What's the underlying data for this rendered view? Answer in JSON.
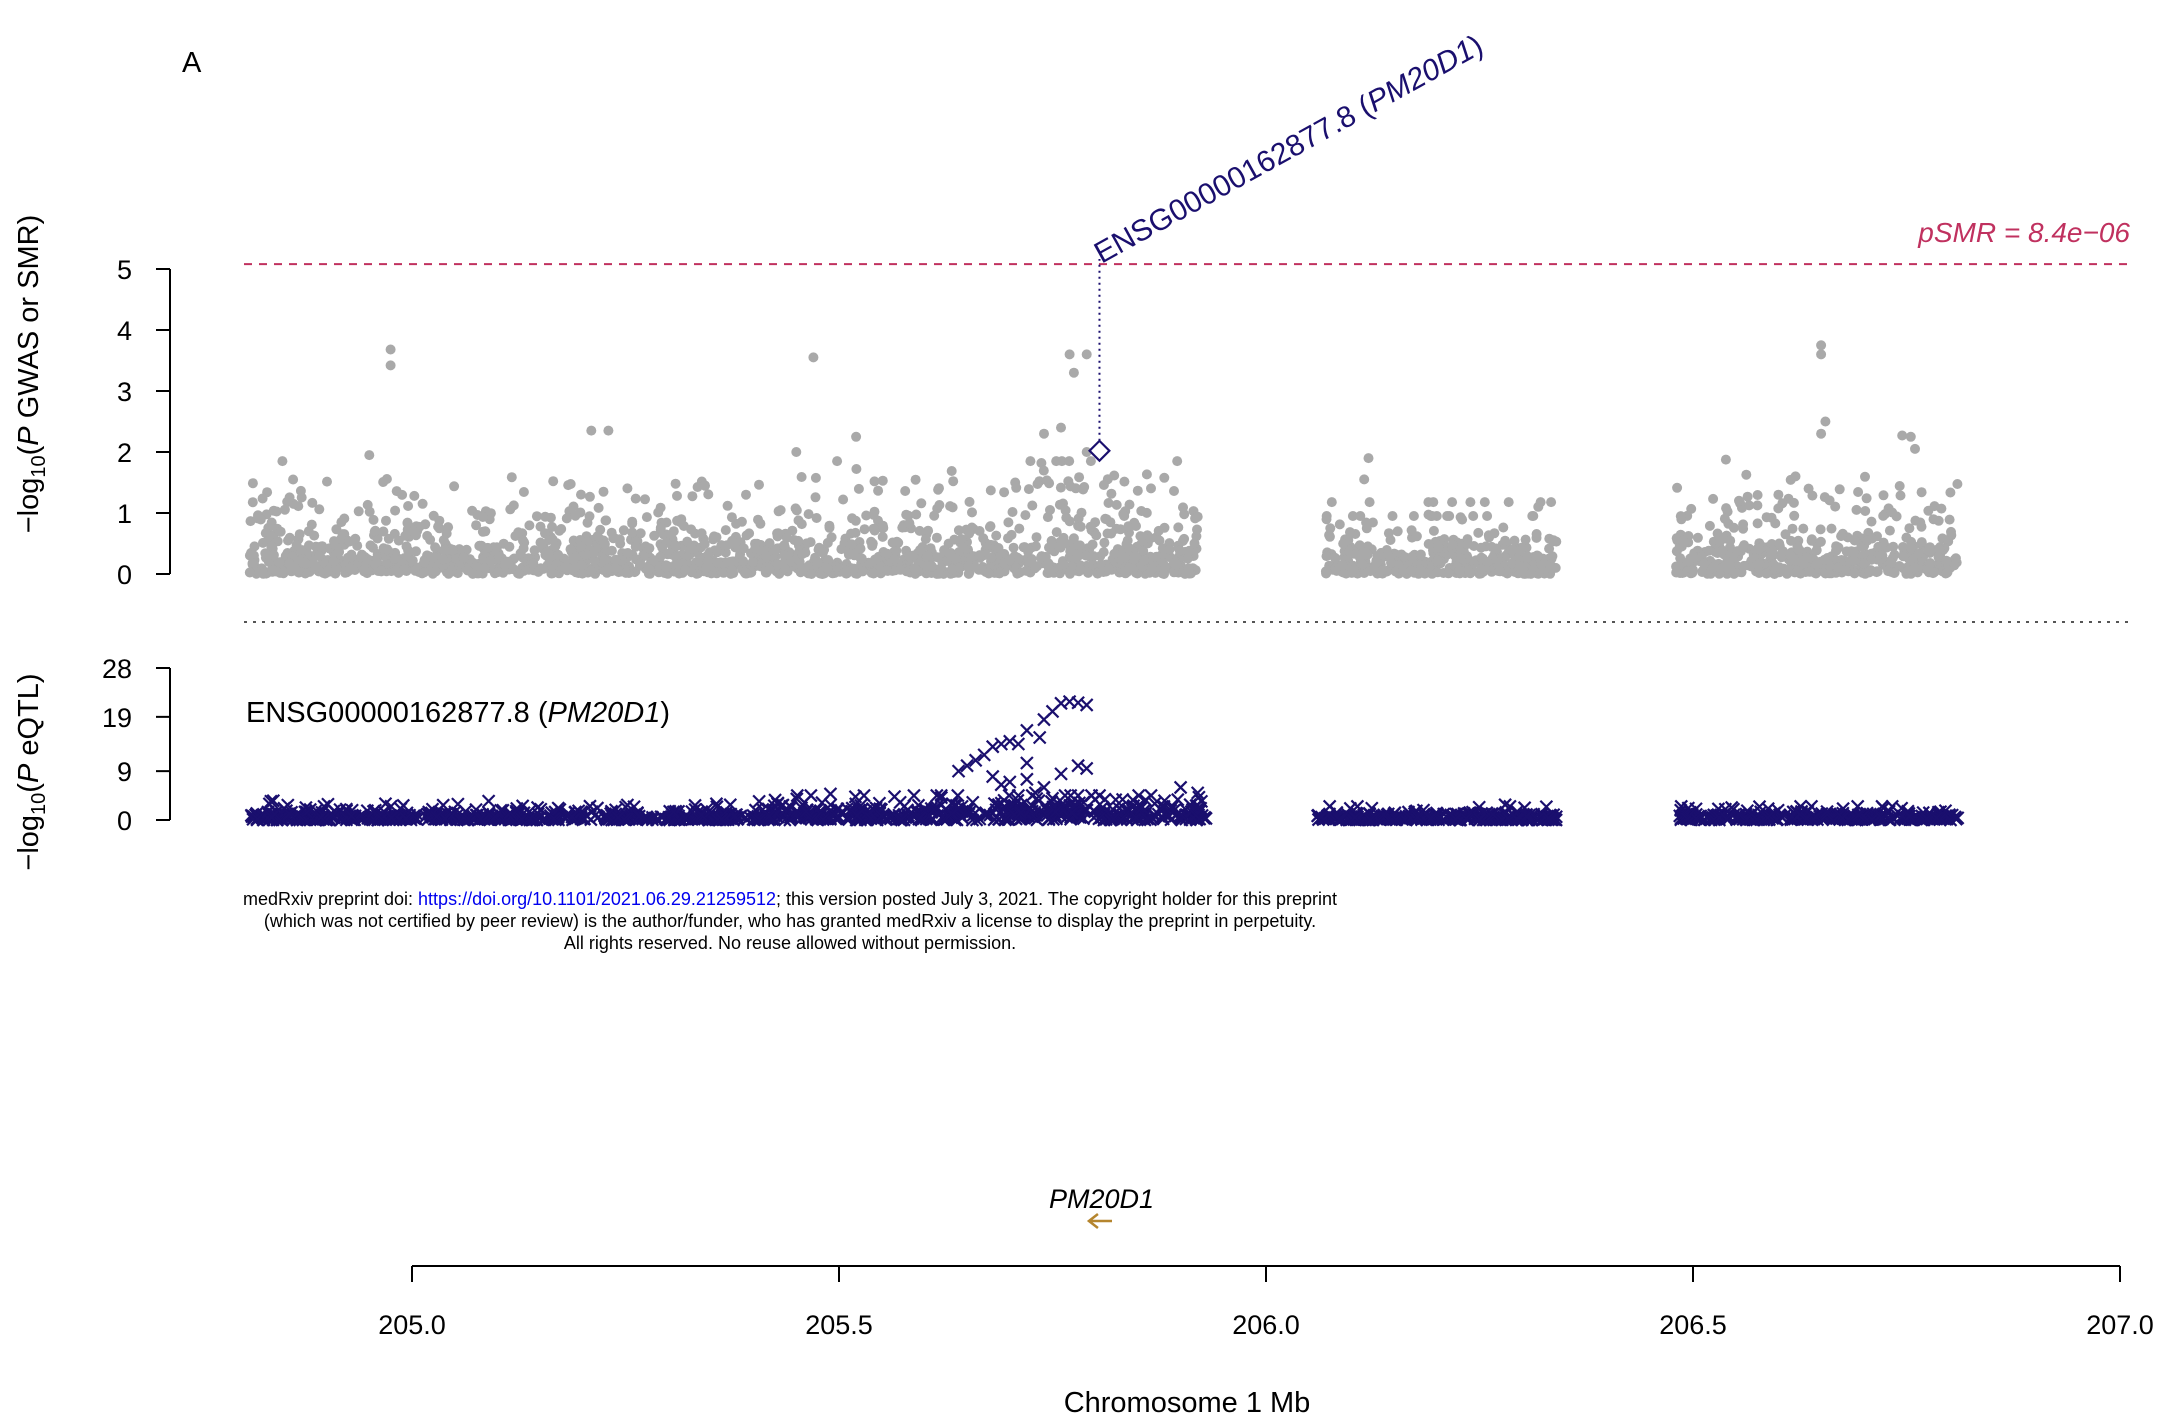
{
  "panel_label": "A",
  "notice": {
    "line1_pre": "medRxiv preprint doi: ",
    "doi_link": "https://doi.org/10.1101/2021.06.29.21259512",
    "line1_post": "; this version posted July 3, 2021. The copyright holder for this preprint",
    "line2": "(which was not certified by peer review) is the author/funder, who has granted medRxiv a license to display the preprint in perpetuity.",
    "line3": "All rights reserved. No reuse allowed without permission."
  },
  "colors": {
    "gwas_points": "#a9a9a9",
    "eqtl_points": "#1a0f6e",
    "threshold_line": "#c0315f",
    "probe": "#1a0f6e",
    "gene_arrow": "#b5852e"
  },
  "chart_data": [
    {
      "type": "scatter",
      "panel": "GWAS / SMR",
      "ylabel_parts": [
        "−log",
        "10",
        "(",
        "P",
        " GWAS or SMR)"
      ],
      "ylim": [
        0,
        5.1
      ],
      "yticks": [
        "0",
        "1",
        "2",
        "3",
        "4",
        "5"
      ],
      "threshold": {
        "value": 5.08,
        "label": "pSMR = 8.4e−06"
      },
      "smr_probe": {
        "x": 205.805,
        "y": 2.02,
        "label_id": "ENSG00000162877.8",
        "label_gene": "PM20D1"
      },
      "series": [
        {
          "regions": [
            [
              204.81,
              205.92,
              0.6,
              3.7
            ],
            [
              206.07,
              206.34,
              0.5,
              1.9
            ],
            [
              206.48,
              206.81,
              0.6,
              3.75
            ]
          ]
        }
      ],
      "notable_points": [
        {
          "x": 204.975,
          "y": 3.68
        },
        {
          "x": 204.975,
          "y": 3.42
        },
        {
          "x": 204.95,
          "y": 1.95
        },
        {
          "x": 205.21,
          "y": 2.35
        },
        {
          "x": 205.23,
          "y": 2.35
        },
        {
          "x": 205.47,
          "y": 3.55
        },
        {
          "x": 205.45,
          "y": 2.0
        },
        {
          "x": 205.52,
          "y": 2.25
        },
        {
          "x": 205.77,
          "y": 3.6
        },
        {
          "x": 205.79,
          "y": 3.6
        },
        {
          "x": 205.775,
          "y": 3.3
        },
        {
          "x": 205.76,
          "y": 2.4
        },
        {
          "x": 205.74,
          "y": 2.3
        },
        {
          "x": 205.79,
          "y": 2.0
        },
        {
          "x": 205.795,
          "y": 1.85
        },
        {
          "x": 206.12,
          "y": 1.9
        },
        {
          "x": 206.115,
          "y": 1.55
        },
        {
          "x": 206.65,
          "y": 3.75
        },
        {
          "x": 206.65,
          "y": 3.6
        },
        {
          "x": 206.655,
          "y": 2.5
        },
        {
          "x": 206.65,
          "y": 2.3
        },
        {
          "x": 206.745,
          "y": 2.27
        },
        {
          "x": 206.755,
          "y": 2.25
        },
        {
          "x": 206.76,
          "y": 2.05
        },
        {
          "x": 206.62,
          "y": 1.6
        },
        {
          "x": 206.6,
          "y": 1.3
        }
      ]
    },
    {
      "type": "scatter",
      "panel": "eQTL",
      "ylabel_parts": [
        "−log",
        "10",
        "(",
        "P",
        " eQTL)"
      ],
      "ylim": [
        0,
        28
      ],
      "yticks": [
        "0",
        "9",
        "19",
        "28"
      ],
      "probe_label_id": "ENSG00000162877.8",
      "probe_label_gene": "PM20D1",
      "series": [
        {
          "regions": [
            [
              204.81,
              205.93,
              0.9,
              4.5
            ],
            [
              206.06,
              206.34,
              0.8,
              2.5
            ],
            [
              206.48,
              206.81,
              0.9,
              2.5
            ]
          ]
        }
      ],
      "notable_points": [
        {
          "x": 205.76,
          "y": 21.5
        },
        {
          "x": 205.77,
          "y": 21.8
        },
        {
          "x": 205.78,
          "y": 21.6
        },
        {
          "x": 205.79,
          "y": 21.2
        },
        {
          "x": 205.75,
          "y": 20.0
        },
        {
          "x": 205.74,
          "y": 18.5
        },
        {
          "x": 205.72,
          "y": 16.5
        },
        {
          "x": 205.735,
          "y": 15.2
        },
        {
          "x": 205.7,
          "y": 14.5
        },
        {
          "x": 205.69,
          "y": 14.0
        },
        {
          "x": 205.71,
          "y": 14.0
        },
        {
          "x": 205.68,
          "y": 13.5
        },
        {
          "x": 205.67,
          "y": 12.0
        },
        {
          "x": 205.66,
          "y": 11.0
        },
        {
          "x": 205.65,
          "y": 10.0
        },
        {
          "x": 205.64,
          "y": 9.0
        },
        {
          "x": 205.78,
          "y": 10.0
        },
        {
          "x": 205.79,
          "y": 9.5
        },
        {
          "x": 205.68,
          "y": 8.0
        },
        {
          "x": 205.7,
          "y": 7.0
        },
        {
          "x": 205.69,
          "y": 6.5
        },
        {
          "x": 205.72,
          "y": 7.5
        },
        {
          "x": 205.74,
          "y": 6.0
        },
        {
          "x": 205.73,
          "y": 5.0
        },
        {
          "x": 205.71,
          "y": 4.5
        },
        {
          "x": 205.75,
          "y": 4.0
        },
        {
          "x": 205.78,
          "y": 4.5
        },
        {
          "x": 205.76,
          "y": 8.5
        },
        {
          "x": 205.72,
          "y": 10.5
        },
        {
          "x": 205.49,
          "y": 4.8
        },
        {
          "x": 206.28,
          "y": 2.8
        },
        {
          "x": 205.9,
          "y": 6.0
        },
        {
          "x": 205.92,
          "y": 5.0
        }
      ]
    },
    {
      "type": "gene_track",
      "genes": [
        {
          "name": "PM20D1",
          "start": 205.795,
          "end": 205.815,
          "strand": "-"
        }
      ],
      "xlabel": "Chromosome 1 Mb",
      "xlim": [
        205.0,
        207.0
      ],
      "xticks": [
        "205.0",
        "205.5",
        "206.0",
        "206.5",
        "207.0"
      ]
    }
  ]
}
